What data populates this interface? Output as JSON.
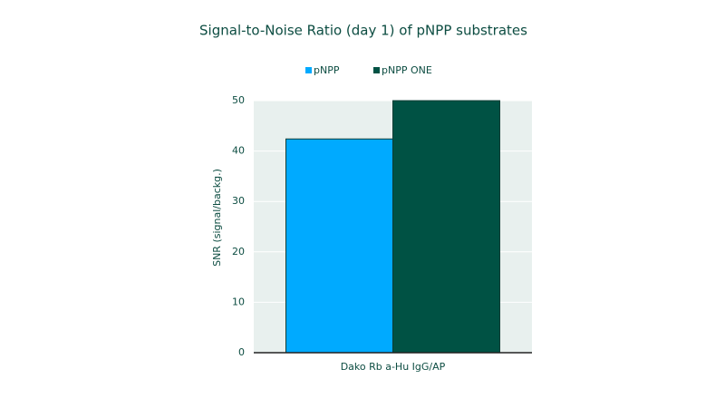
{
  "chart_data": {
    "type": "bar",
    "title": "Signal-to-Noise Ratio  (day 1) of pNPP substrates",
    "y_label": "SNR (signal/backg.)",
    "categories": [
      "Dako Rb a-Hu IgG/AP"
    ],
    "series": [
      {
        "name": "pNPP",
        "color": "#00aaff",
        "values": [
          42.4
        ]
      },
      {
        "name": "pNPP ONE",
        "color": "#005244",
        "values": [
          50
        ]
      }
    ],
    "ylim": [
      0,
      50
    ],
    "yticks": [
      0,
      10,
      20,
      30,
      40,
      50
    ],
    "grid": true,
    "legend": "top"
  }
}
